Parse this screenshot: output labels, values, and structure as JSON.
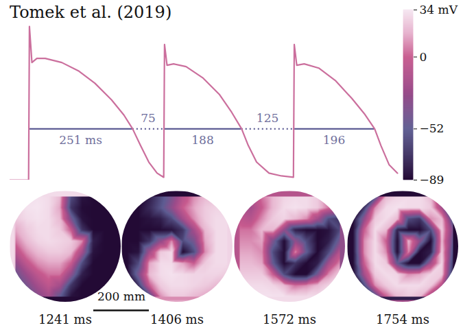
{
  "chart_data": {
    "type": "line",
    "title": "Tomek et al. (2019)",
    "x": [
      -45,
      0,
      2,
      8,
      20,
      40,
      80,
      120,
      160,
      200,
      230,
      251,
      270,
      290,
      310,
      326,
      328,
      334,
      350,
      380,
      420,
      460,
      490,
      514,
      530,
      550,
      580,
      610,
      639,
      641,
      647,
      665,
      700,
      740,
      780,
      810,
      835,
      850,
      870,
      890
    ],
    "values": [
      -89,
      -89,
      22,
      -4,
      -1,
      -1,
      -4,
      -10,
      -19,
      -31,
      -42,
      -52,
      -64,
      -76,
      -84,
      -87,
      9,
      -6,
      -5,
      -7,
      -15,
      -27,
      -40,
      -52,
      -64,
      -76,
      -84,
      -86,
      -87,
      9,
      -6,
      -5,
      -8,
      -17,
      -30,
      -41,
      -52,
      -64,
      -78,
      -84
    ],
    "color": "#cb6f9d",
    "xlim": [
      -45,
      900
    ],
    "ylim": [
      -89,
      34
    ],
    "tick_labels": false,
    "intervals": {
      "starts": [
        0,
        251,
        326,
        514,
        639
      ],
      "values": [
        251,
        75,
        188,
        125,
        196
      ],
      "value_labels": [
        "251 ms",
        "75",
        "188",
        "125",
        "196"
      ],
      "line_styles": [
        "solid",
        "dotted",
        "solid",
        "dotted",
        "solid"
      ],
      "level": -52,
      "color": "#5e5d95"
    },
    "colorbar": {
      "range": [
        -89,
        34
      ],
      "ticks": [
        {
          "value": 34,
          "label": "34 mV"
        },
        0,
        {
          "value": -52,
          "label": "−52"
        },
        {
          "value": -89,
          "label": "−89"
        }
      ],
      "color_values": [
        -89,
        -52,
        -25,
        0,
        17,
        34
      ],
      "colors": [
        "#230a35",
        "#5d5c92",
        "#9b4b8a",
        "#c75a8e",
        "#e6b0cc",
        "#f6e8f2"
      ]
    },
    "panels": {
      "xlim": [
        0,
        400
      ],
      "ylim": [
        0,
        400
      ],
      "labels": [
        "1241 ms",
        "1406 ms",
        "1572 ms",
        "1754 ms"
      ],
      "cells": [
        [
          [
            30,
            30,
            32,
            30,
            20,
            -60,
            -85,
            -89,
            -89,
            -89
          ],
          [
            30,
            32,
            33,
            30,
            15,
            -70,
            -88,
            -89,
            -89,
            -89
          ],
          [
            25,
            30,
            32,
            30,
            20,
            -40,
            -85,
            -89,
            -89,
            -89
          ],
          [
            15,
            25,
            30,
            30,
            25,
            0,
            -70,
            -89,
            -89,
            -89
          ],
          [
            5,
            20,
            28,
            30,
            28,
            25,
            10,
            -80,
            -89,
            -89
          ],
          [
            -10,
            10,
            20,
            25,
            25,
            20,
            -20,
            -85,
            -89,
            -89
          ],
          [
            -30,
            -5,
            10,
            15,
            15,
            0,
            -60,
            -89,
            -89,
            -89
          ],
          [
            -45,
            -25,
            -5,
            5,
            5,
            -30,
            -80,
            -89,
            -89,
            -89
          ],
          [
            -55,
            -40,
            -20,
            -5,
            -20,
            -70,
            -89,
            -89,
            -89,
            -89
          ],
          [
            -60,
            -50,
            -35,
            -20,
            -50,
            -85,
            -89,
            -89,
            -89,
            -89
          ]
        ],
        [
          [
            -89,
            -89,
            -80,
            -60,
            -40,
            -10,
            10,
            20,
            25,
            25
          ],
          [
            -89,
            -89,
            -75,
            -55,
            -30,
            0,
            15,
            25,
            28,
            28
          ],
          [
            -89,
            -89,
            -85,
            -80,
            -60,
            -20,
            10,
            25,
            30,
            30
          ],
          [
            -89,
            -89,
            -89,
            -88,
            -85,
            -70,
            -20,
            20,
            30,
            30
          ],
          [
            -89,
            -89,
            -70,
            -30,
            10,
            -60,
            -40,
            15,
            30,
            30
          ],
          [
            -89,
            -85,
            -20,
            25,
            30,
            -89,
            -60,
            10,
            30,
            30
          ],
          [
            -89,
            -60,
            15,
            30,
            30,
            15,
            0,
            25,
            30,
            30
          ],
          [
            -89,
            -40,
            20,
            30,
            32,
            30,
            28,
            28,
            28,
            25
          ],
          [
            -89,
            -70,
            0,
            25,
            30,
            30,
            28,
            25,
            20,
            15
          ],
          [
            -89,
            -89,
            -60,
            10,
            25,
            25,
            20,
            15,
            10,
            5
          ]
        ],
        [
          [
            0,
            -10,
            5,
            20,
            28,
            30,
            30,
            25,
            10,
            -20
          ],
          [
            -10,
            -20,
            0,
            20,
            30,
            32,
            30,
            25,
            5,
            -30
          ],
          [
            -5,
            -10,
            10,
            25,
            28,
            20,
            10,
            -20,
            -60,
            -70
          ],
          [
            5,
            5,
            20,
            20,
            -30,
            -80,
            -89,
            -89,
            -85,
            -60
          ],
          [
            10,
            10,
            15,
            -40,
            -89,
            -30,
            -60,
            -89,
            -80,
            -40
          ],
          [
            15,
            15,
            10,
            -60,
            -89,
            10,
            -50,
            -89,
            -60,
            -10
          ],
          [
            20,
            20,
            15,
            -50,
            -89,
            -70,
            -89,
            -80,
            -20,
            10
          ],
          [
            25,
            25,
            25,
            0,
            -60,
            -89,
            -89,
            -40,
            10,
            25
          ],
          [
            28,
            30,
            30,
            28,
            20,
            5,
            10,
            20,
            28,
            30
          ],
          [
            30,
            30,
            32,
            32,
            32,
            30,
            30,
            30,
            30,
            30
          ]
        ],
        [
          [
            -89,
            -89,
            -60,
            20,
            28,
            30,
            30,
            20,
            -40,
            -89
          ],
          [
            -89,
            -70,
            10,
            30,
            32,
            30,
            30,
            25,
            -20,
            -89
          ],
          [
            -89,
            -30,
            25,
            30,
            20,
            -60,
            -70,
            10,
            20,
            -60
          ],
          [
            -89,
            0,
            30,
            20,
            -80,
            -89,
            -89,
            -60,
            25,
            -40
          ],
          [
            -89,
            10,
            30,
            0,
            -89,
            20,
            -30,
            -89,
            20,
            -50
          ],
          [
            -89,
            10,
            30,
            10,
            -89,
            10,
            -89,
            -80,
            25,
            -60
          ],
          [
            -89,
            0,
            30,
            25,
            -50,
            -89,
            -89,
            -20,
            28,
            -70
          ],
          [
            -89,
            -20,
            25,
            30,
            28,
            10,
            15,
            28,
            25,
            -80
          ],
          [
            -89,
            -60,
            10,
            25,
            30,
            30,
            30,
            25,
            -10,
            -89
          ],
          [
            -89,
            -89,
            -60,
            0,
            20,
            25,
            20,
            -20,
            -80,
            -89
          ]
        ]
      ]
    },
    "scale_bar": {
      "value": 200,
      "label": "200 mm"
    }
  }
}
